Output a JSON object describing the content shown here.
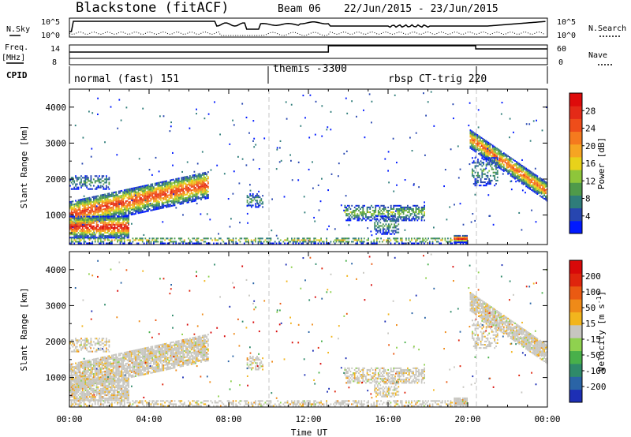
{
  "header": {
    "radar": "Blackstone (fitACF)",
    "beam": "Beam 06",
    "dates": "22/Jun/2015 - 23/Jun/2015"
  },
  "summary": {
    "nsky_label": "N.Sky",
    "nsearch_label": "N.Search",
    "freq_label_1": "Freq.",
    "freq_label_2": "[MHz]",
    "nave_label": "Nave",
    "cpid_label": "CPID",
    "left_ticks_top": [
      "10^5",
      "10^0"
    ],
    "right_ticks_top": [
      "10^5",
      "10^0"
    ],
    "left_ticks_freq": [
      "14",
      "8"
    ],
    "right_ticks_nave": [
      "60",
      "0"
    ],
    "cpid_segments": [
      {
        "label": "normal (fast) 151",
        "start": 0,
        "end": 10
      },
      {
        "label": "themis -3300",
        "start": 10,
        "end": 16
      },
      {
        "label": "rbsp CT-trig 220",
        "start": 16,
        "end": 24
      }
    ]
  },
  "chart_data": [
    {
      "type": "heatmap",
      "name": "power",
      "ylabel": "Slant Range [km]",
      "ylim": [
        180,
        4500
      ],
      "y_ticks": [
        "1000",
        "2000",
        "3000",
        "4000"
      ],
      "xlim": [
        0,
        24
      ],
      "x_ticks": [
        "00:00",
        "04:00",
        "08:00",
        "12:00",
        "16:00",
        "20:00",
        "00:00"
      ],
      "colorbar": {
        "label": "Power [dB]",
        "ticks": [
          "4",
          "8",
          "12",
          "16",
          "20",
          "24",
          "28"
        ],
        "colors": [
          "#0019ff",
          "#2746b0",
          "#2f7d7a",
          "#4f9a4a",
          "#8ec63a",
          "#e8d21a",
          "#f6a522",
          "#f57a1e",
          "#ee4d1a",
          "#e42a17",
          "#de0b0b"
        ]
      }
    },
    {
      "type": "heatmap",
      "name": "velocity",
      "ylabel": "Slant Range [km]",
      "ylim": [
        180,
        4500
      ],
      "y_ticks": [
        "1000",
        "2000",
        "3000",
        "4000"
      ],
      "xlim": [
        0,
        24
      ],
      "x_ticks": [
        "00:00",
        "04:00",
        "08:00",
        "12:00",
        "16:00",
        "20:00",
        "00:00"
      ],
      "xlabel": "Time UT",
      "colorbar": {
        "label": "Velocity [m s",
        "label_sup": "-1",
        "ticks": [
          "200",
          "100",
          "50",
          "15",
          "-15",
          "-50",
          "-100",
          "-200"
        ],
        "colors": [
          "#1d2fb5",
          "#2a64a6",
          "#2f8a6a",
          "#48b04a",
          "#8fd14f",
          "#c7c6c0",
          "#f2b51d",
          "#ef8a18",
          "#ea5a12",
          "#df250d",
          "#d80909"
        ]
      }
    }
  ]
}
